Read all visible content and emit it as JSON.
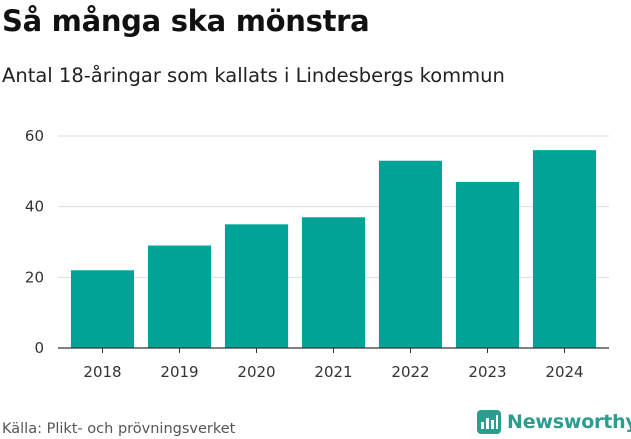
{
  "title": "Så många ska mönstra",
  "subtitle": "Antal 18-åringar som kallats i Lindesbergs kommun",
  "footer": {
    "source": "Källa: Plikt- och prövningsverket",
    "brand": "Newsworthy"
  },
  "colors": {
    "bar": "#00a396",
    "grid": "#dddddd",
    "brand": "#2a9d8f"
  },
  "chart_data": {
    "type": "bar",
    "title": "Så många ska mönstra",
    "subtitle": "Antal 18-åringar som kallats i Lindesbergs kommun",
    "xlabel": "",
    "ylabel": "",
    "categories": [
      "2018",
      "2019",
      "2020",
      "2021",
      "2022",
      "2023",
      "2024"
    ],
    "values": [
      22,
      29,
      35,
      37,
      53,
      47,
      56
    ],
    "ylim": [
      0,
      60
    ],
    "yticks": [
      0,
      20,
      40,
      60
    ],
    "grid": true,
    "legend": "none"
  }
}
